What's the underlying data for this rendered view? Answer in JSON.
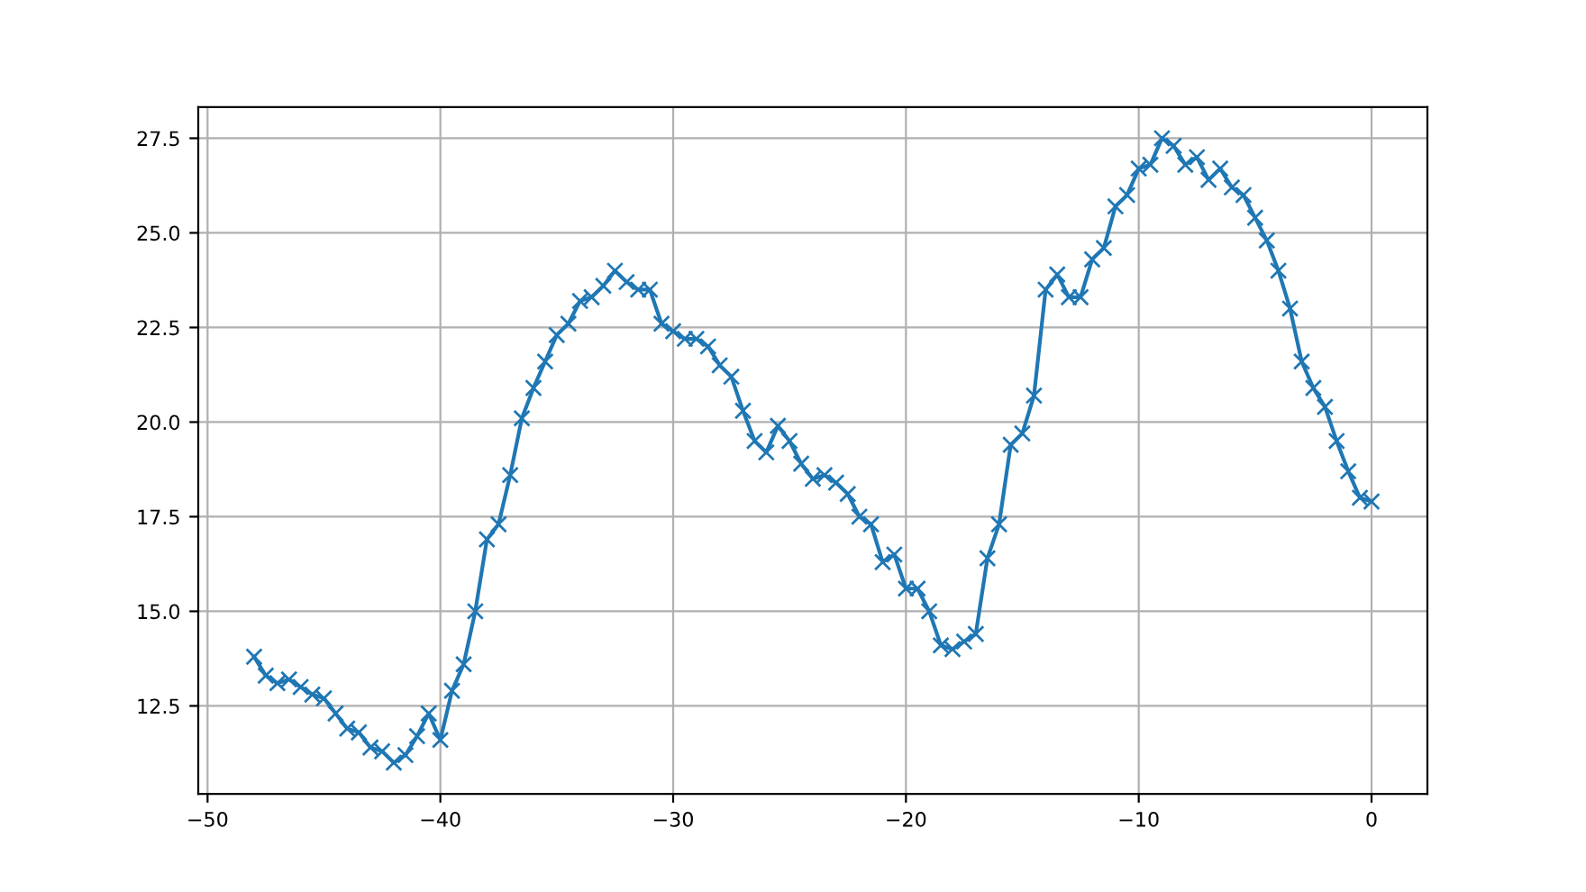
{
  "chart_data": {
    "type": "line",
    "marker": "cross",
    "line_style": "solid",
    "grid": true,
    "x": [
      -48,
      -47.5,
      -47,
      -46.5,
      -46,
      -45.5,
      -45,
      -44.5,
      -44,
      -43.5,
      -43,
      -42.5,
      -42,
      -41.5,
      -41,
      -40.5,
      -40,
      -39.5,
      -39,
      -38.5,
      -38,
      -37.5,
      -37,
      -36.5,
      -36,
      -35.5,
      -35,
      -34.5,
      -34,
      -33.5,
      -33,
      -32.5,
      -32,
      -31.5,
      -31,
      -30.5,
      -30,
      -29.5,
      -29,
      -28.5,
      -28,
      -27.5,
      -27,
      -26.5,
      -26,
      -25.5,
      -25,
      -24.5,
      -24,
      -23.5,
      -23,
      -22.5,
      -22,
      -21.5,
      -21,
      -20.5,
      -20,
      -19.5,
      -19,
      -18.5,
      -18,
      -17.5,
      -17,
      -16.5,
      -16,
      -15.5,
      -15,
      -14.5,
      -14,
      -13.5,
      -13,
      -12.5,
      -12,
      -11.5,
      -11,
      -10.5,
      -10,
      -9.5,
      -9,
      -8.5,
      -8,
      -7.5,
      -7,
      -6.5,
      -6,
      -5.5,
      -5,
      -4.5,
      -4,
      -3.5,
      -3,
      -2.5,
      -2,
      -1.5,
      -1,
      -0.5,
      0
    ],
    "series": [
      {
        "color": "#1f77b4",
        "values": [
          13.8,
          13.3,
          13.1,
          13.2,
          13.0,
          12.8,
          12.7,
          12.3,
          11.9,
          11.8,
          11.4,
          11.3,
          11.0,
          11.2,
          11.7,
          12.3,
          11.6,
          12.9,
          13.6,
          15.0,
          16.9,
          17.3,
          18.6,
          20.1,
          20.9,
          21.6,
          22.3,
          22.6,
          23.2,
          23.3,
          23.6,
          24.0,
          23.7,
          23.5,
          23.5,
          22.6,
          22.4,
          22.2,
          22.2,
          22.0,
          21.5,
          21.2,
          20.3,
          19.5,
          19.2,
          19.9,
          19.5,
          18.9,
          18.5,
          18.6,
          18.4,
          18.1,
          17.5,
          17.3,
          16.3,
          16.5,
          15.6,
          15.6,
          15.0,
          14.1,
          14.0,
          14.2,
          14.4,
          16.4,
          17.3,
          19.4,
          19.7,
          20.7,
          23.5,
          23.9,
          23.3,
          23.3,
          24.3,
          24.6,
          25.7,
          26.0,
          26.7,
          26.8,
          27.5,
          27.3,
          26.8,
          27.0,
          26.4,
          26.7,
          26.2,
          26.0,
          25.4,
          24.8,
          24.0,
          23.0,
          21.6,
          20.9,
          20.4,
          19.5,
          18.7,
          18.0,
          17.9
        ]
      }
    ],
    "xlim": [
      -50.4,
      2.4
    ],
    "ylim": [
      10.175,
      28.325
    ],
    "xticks": [
      {
        "value": -50,
        "label": "−50"
      },
      {
        "value": -40,
        "label": "−40"
      },
      {
        "value": -30,
        "label": "−30"
      },
      {
        "value": -20,
        "label": "−20"
      },
      {
        "value": -10,
        "label": "−10"
      },
      0
    ],
    "yticks": [
      {
        "value": 12.5,
        "label": "12.5"
      },
      {
        "value": 15,
        "label": "15.0"
      },
      {
        "value": 17.5,
        "label": "17.5"
      },
      {
        "value": 20,
        "label": "20.0"
      },
      {
        "value": 22.5,
        "label": "22.5"
      },
      {
        "value": 25,
        "label": "25.0"
      },
      {
        "value": 27.5,
        "label": "27.5"
      }
    ]
  }
}
